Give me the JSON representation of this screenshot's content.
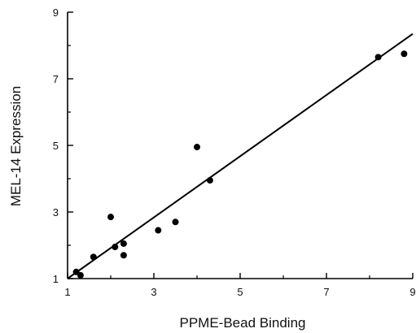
{
  "chart_data": {
    "type": "scatter",
    "title": "",
    "xlabel": "PPME-Bead Binding",
    "ylabel": "MEL-14 Expression",
    "xlim": [
      1,
      9
    ],
    "ylim": [
      1,
      9
    ],
    "xticks": [
      1,
      3,
      5,
      7,
      9
    ],
    "yticks": [
      1,
      3,
      5,
      7,
      9
    ],
    "grid": false,
    "legend": "none",
    "series": [
      {
        "points": [
          {
            "x": 1.2,
            "y": 1.2
          },
          {
            "x": 1.3,
            "y": 1.1
          },
          {
            "x": 1.6,
            "y": 1.65
          },
          {
            "x": 2.0,
            "y": 2.85
          },
          {
            "x": 2.1,
            "y": 1.95
          },
          {
            "x": 2.3,
            "y": 2.05
          },
          {
            "x": 2.3,
            "y": 1.7
          },
          {
            "x": 3.1,
            "y": 2.45
          },
          {
            "x": 3.5,
            "y": 2.7
          },
          {
            "x": 4.0,
            "y": 4.95
          },
          {
            "x": 4.3,
            "y": 3.95
          },
          {
            "x": 8.2,
            "y": 7.65
          },
          {
            "x": 8.8,
            "y": 7.75
          }
        ]
      }
    ],
    "fit_line": {
      "x": [
        1,
        9
      ],
      "y": [
        1.0,
        8.35
      ]
    },
    "colors": {
      "marker": "#000000",
      "line": "#000000",
      "axis": "#000000"
    }
  }
}
